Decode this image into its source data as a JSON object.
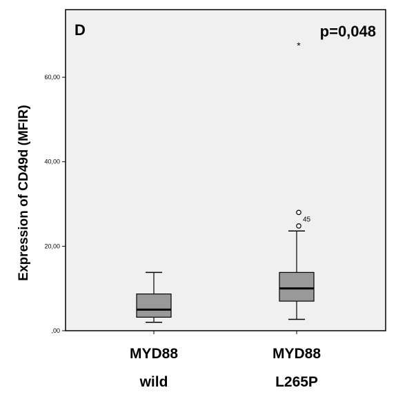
{
  "chart_data": {
    "type": "boxplot",
    "panel_label": "D",
    "annotation": "p=0,048",
    "ylabel": "Expression of CD49d (MFIR)",
    "xlabel": "",
    "ylim": [
      0,
      76
    ],
    "y_ticks": [
      {
        "value": 0,
        "label": ",00"
      },
      {
        "value": 20,
        "label": "20,00"
      },
      {
        "value": 40,
        "label": "40,00"
      },
      {
        "value": 60,
        "label": "60,00"
      }
    ],
    "grid": false,
    "box_color": "#999999",
    "background_color": "#f0f0f0",
    "categories": [
      {
        "line1": "MYD88",
        "line2": "wild"
      },
      {
        "line1": "MYD88",
        "line2": "L265P"
      }
    ],
    "boxes": [
      {
        "whisker_low": 2.0,
        "q1": 3.2,
        "median": 5.0,
        "q3": 8.7,
        "whisker_high": 13.8,
        "outliers": []
      },
      {
        "whisker_low": 2.7,
        "q1": 7.0,
        "median": 10.0,
        "q3": 13.8,
        "whisker_high": 23.6,
        "outliers": [
          {
            "value": 24.8,
            "marker": "circle",
            "label": ""
          },
          {
            "value": 28.0,
            "marker": "circle",
            "label": "45"
          },
          {
            "value": 68.0,
            "marker": "star",
            "label": ""
          }
        ]
      }
    ]
  }
}
